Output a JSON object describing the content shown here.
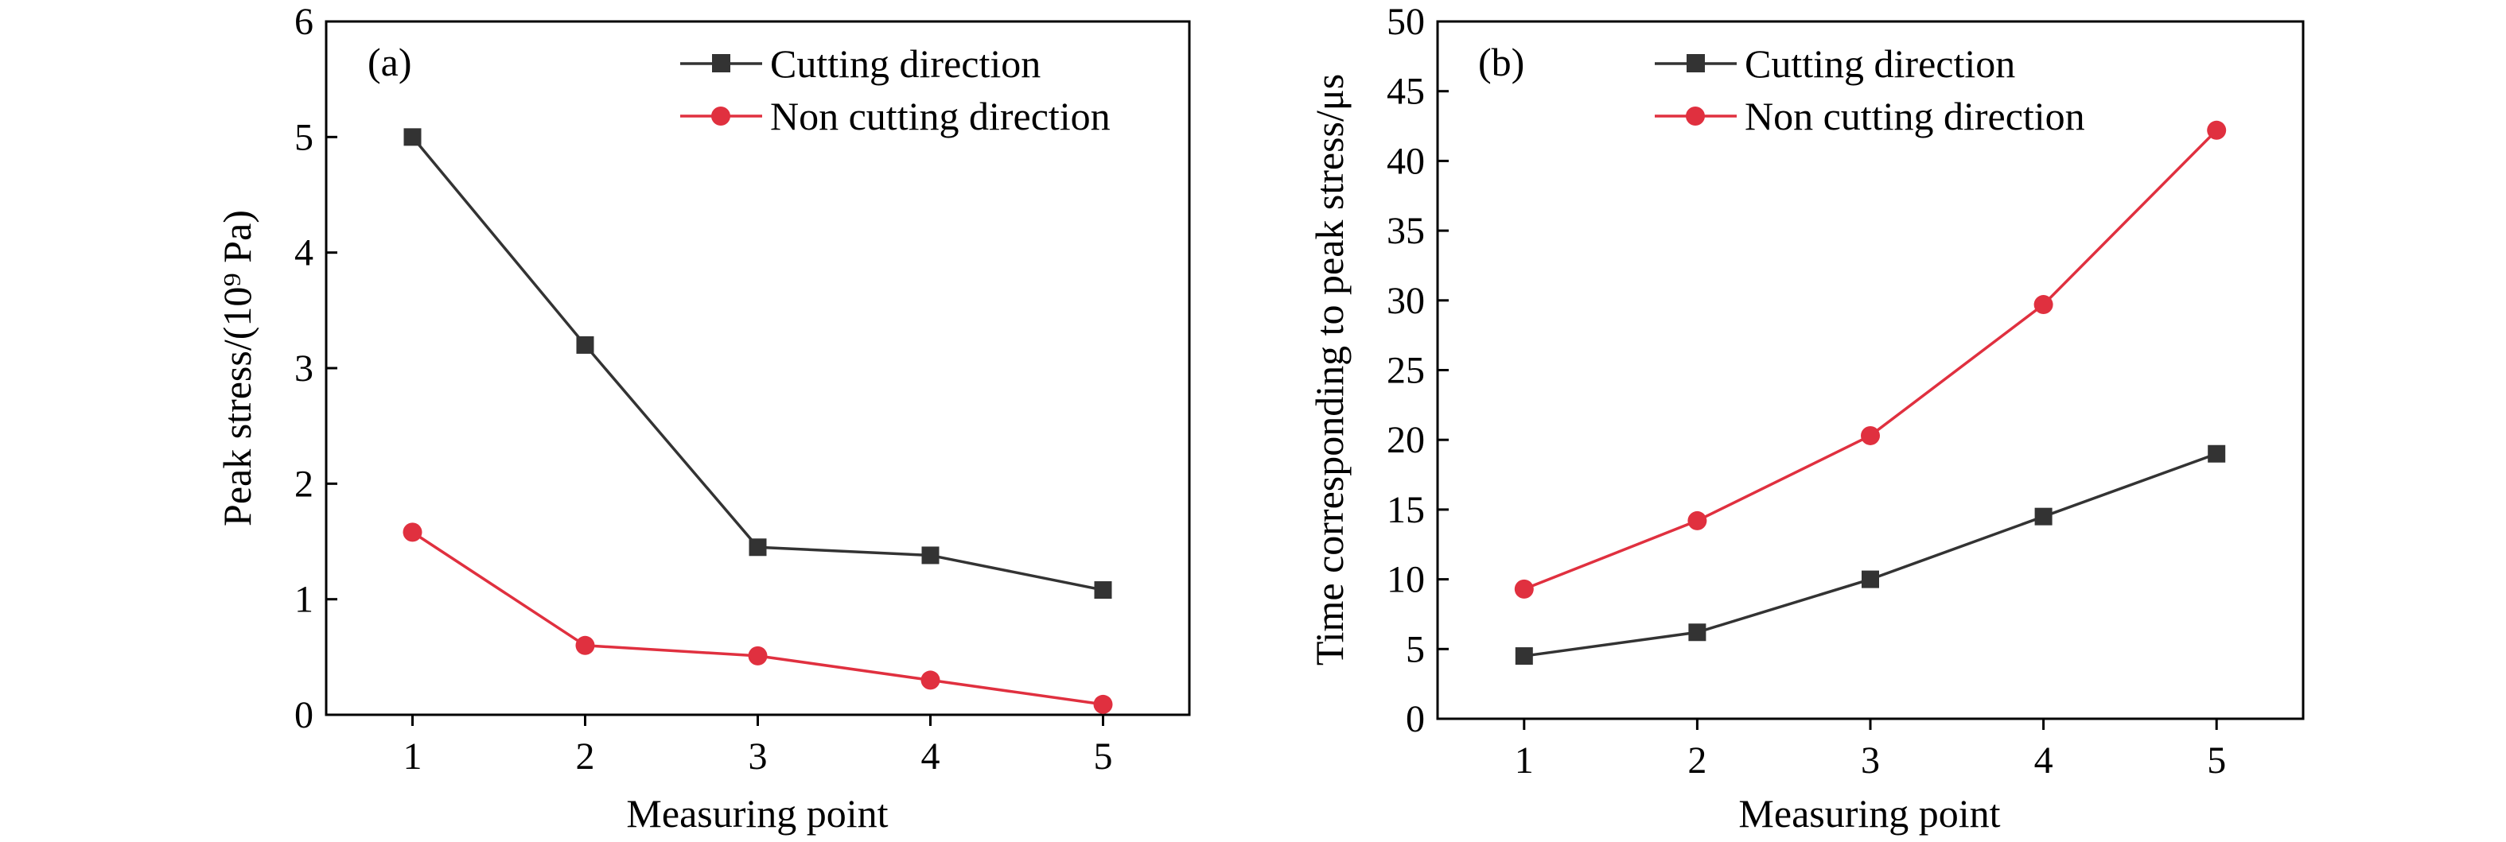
{
  "chart_data": [
    {
      "type": "line",
      "panel_label": "(a)",
      "x": [
        1,
        2,
        3,
        4,
        5
      ],
      "xlabel": "Measuring point",
      "ylabel": "Peak stress/(10⁹ Pa)",
      "xlim": [
        0.5,
        5.5
      ],
      "ylim": [
        0,
        6
      ],
      "xticks": [
        1,
        2,
        3,
        4,
        5
      ],
      "yticks": [
        0,
        1,
        2,
        3,
        4,
        5,
        6
      ],
      "grid": false,
      "legend_position": "top-right",
      "series": [
        {
          "name": "Cutting direction",
          "marker": "square",
          "color": "#333333",
          "values": [
            5.0,
            3.2,
            1.45,
            1.38,
            1.08
          ]
        },
        {
          "name": "Non cutting direction",
          "marker": "circle",
          "color": "#e0303f",
          "values": [
            1.58,
            0.6,
            0.51,
            0.3,
            0.09
          ]
        }
      ]
    },
    {
      "type": "line",
      "panel_label": "(b)",
      "x": [
        1,
        2,
        3,
        4,
        5
      ],
      "xlabel": "Measuring point",
      "ylabel": "Time corresponding to peak stress/μs",
      "xlim": [
        0.5,
        5.5
      ],
      "ylim": [
        0,
        50
      ],
      "xticks": [
        1,
        2,
        3,
        4,
        5
      ],
      "yticks": [
        0,
        5,
        10,
        15,
        20,
        25,
        30,
        35,
        40,
        45,
        50
      ],
      "grid": false,
      "legend_position": "top-left",
      "series": [
        {
          "name": "Cutting direction",
          "marker": "square",
          "color": "#333333",
          "values": [
            4.5,
            6.2,
            10.0,
            14.5,
            19.0
          ]
        },
        {
          "name": "Non cutting direction",
          "marker": "circle",
          "color": "#e0303f",
          "values": [
            9.3,
            14.2,
            20.3,
            29.7,
            42.2
          ]
        }
      ]
    }
  ]
}
